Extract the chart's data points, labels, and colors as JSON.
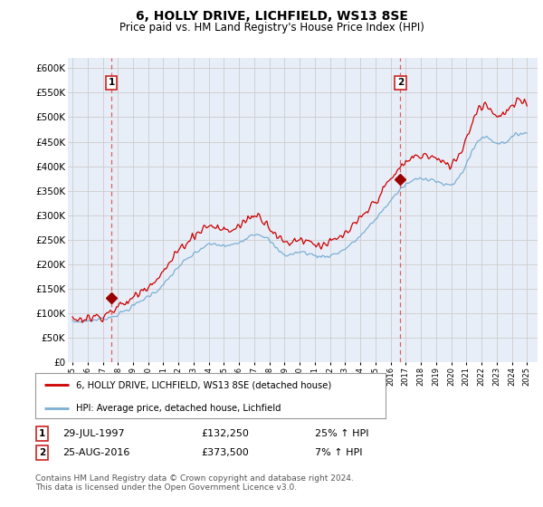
{
  "title": "6, HOLLY DRIVE, LICHFIELD, WS13 8SE",
  "subtitle": "Price paid vs. HM Land Registry's House Price Index (HPI)",
  "title_fontsize": 10,
  "subtitle_fontsize": 8.5,
  "ylim": [
    0,
    620000
  ],
  "yticks": [
    0,
    50000,
    100000,
    150000,
    200000,
    250000,
    300000,
    350000,
    400000,
    450000,
    500000,
    550000,
    600000
  ],
  "ytick_labels": [
    "£0",
    "£50K",
    "£100K",
    "£150K",
    "£200K",
    "£250K",
    "£300K",
    "£350K",
    "£400K",
    "£450K",
    "£500K",
    "£550K",
    "£600K"
  ],
  "xlim_start": 1994.7,
  "xlim_end": 2025.7,
  "sale1_x": 1997.57,
  "sale1_y": 132250,
  "sale1_label": "1",
  "sale1_date": "29-JUL-1997",
  "sale1_price": "£132,250",
  "sale1_hpi": "25% ↑ HPI",
  "sale2_x": 2016.65,
  "sale2_y": 373500,
  "sale2_label": "2",
  "sale2_date": "25-AUG-2016",
  "sale2_price": "£373,500",
  "sale2_hpi": "7% ↑ HPI",
  "line_color_red": "#cc0000",
  "line_color_blue": "#7bafd4",
  "marker_color": "#990000",
  "vline_color": "#dd4444",
  "grid_color": "#cccccc",
  "bg_color": "#e8eef8",
  "legend_label_red": "6, HOLLY DRIVE, LICHFIELD, WS13 8SE (detached house)",
  "legend_label_blue": "HPI: Average price, detached house, Lichfield",
  "footnote": "Contains HM Land Registry data © Crown copyright and database right 2024.\nThis data is licensed under the Open Government Licence v3.0.",
  "footnote_fontsize": 6.5,
  "hpi_knots_x": [
    1995.0,
    1996.0,
    1997.0,
    1998.0,
    1999.0,
    2000.0,
    2001.0,
    2002.0,
    2003.0,
    2004.0,
    2005.0,
    2006.0,
    2007.0,
    2008.0,
    2009.0,
    2010.0,
    2011.0,
    2012.0,
    2013.0,
    2014.0,
    2015.0,
    2016.0,
    2017.0,
    2018.0,
    2019.0,
    2020.0,
    2021.0,
    2022.0,
    2023.0,
    2024.0,
    2025.0
  ],
  "hpi_knots_y": [
    82000,
    85000,
    89000,
    98000,
    115000,
    135000,
    158000,
    195000,
    220000,
    240000,
    238000,
    245000,
    262000,
    248000,
    220000,
    225000,
    218000,
    218000,
    232000,
    258000,
    292000,
    330000,
    362000,
    375000,
    370000,
    362000,
    405000,
    458000,
    448000,
    458000,
    468000
  ],
  "price_knots_x": [
    1995.0,
    1996.0,
    1997.0,
    1998.0,
    1999.0,
    2000.0,
    2001.0,
    2002.0,
    2003.0,
    2004.0,
    2005.0,
    2006.0,
    2007.0,
    2008.0,
    2009.0,
    2010.0,
    2011.0,
    2012.0,
    2013.0,
    2014.0,
    2015.0,
    2016.0,
    2017.0,
    2018.0,
    2019.0,
    2020.0,
    2021.0,
    2022.0,
    2023.0,
    2024.0,
    2025.0
  ],
  "price_knots_y": [
    87000,
    91000,
    97000,
    112000,
    132000,
    158000,
    185000,
    228000,
    258000,
    278000,
    270000,
    278000,
    300000,
    278000,
    245000,
    252000,
    242000,
    244000,
    262000,
    292000,
    330000,
    372000,
    408000,
    422000,
    415000,
    405000,
    458000,
    525000,
    505000,
    520000,
    530000
  ]
}
